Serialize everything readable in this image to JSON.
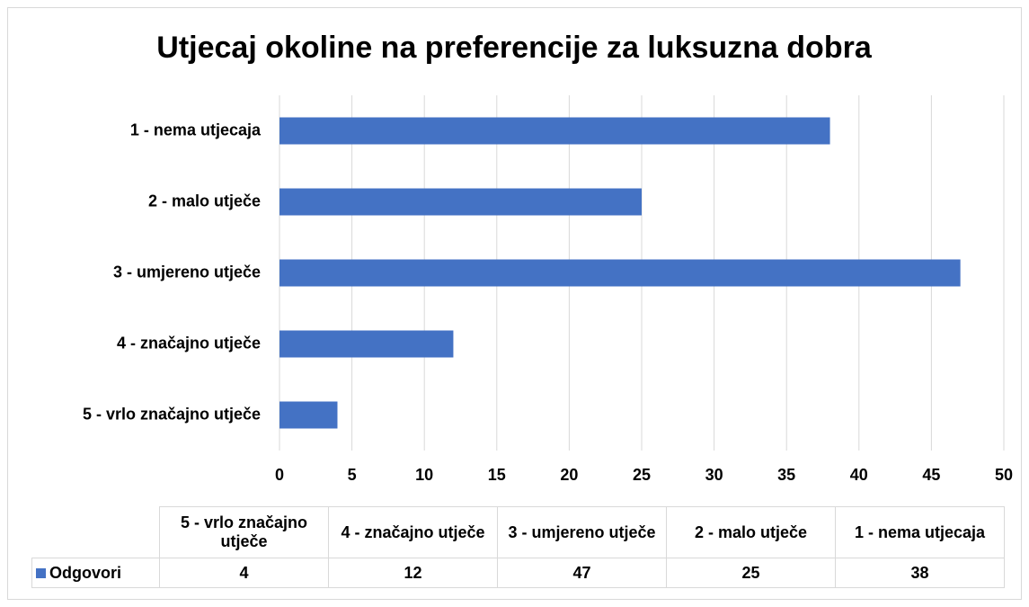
{
  "chart_data": {
    "type": "bar",
    "orientation": "horizontal",
    "title": "Utjecaj okoline na preferencije za luksuzna dobra",
    "categories": [
      "5 - vrlo značajno utječe",
      "4 - značajno utječe",
      "3 - umjereno utječe",
      "2 - malo utječe",
      "1 - nema utjecaja"
    ],
    "series": [
      {
        "name": "Odgovori",
        "color": "#4472c4",
        "values": [
          4,
          12,
          47,
          25,
          38
        ]
      }
    ],
    "xlim": [
      0,
      50
    ],
    "xticks": [
      0,
      5,
      10,
      15,
      20,
      25,
      30,
      35,
      40,
      45,
      50
    ],
    "grid": true,
    "data_table": true
  }
}
